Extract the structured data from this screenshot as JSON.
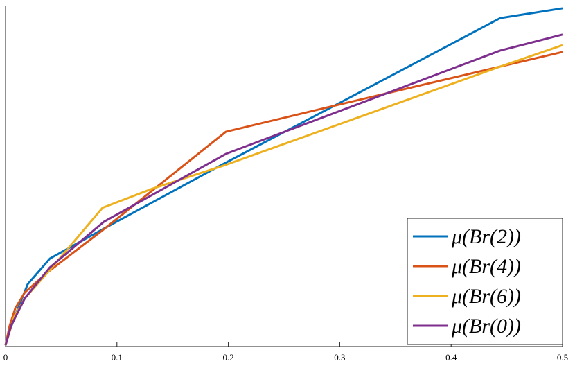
{
  "chart_data": {
    "type": "line",
    "xlim": [
      0,
      0.5
    ],
    "xticks": [
      0,
      0.1,
      0.2,
      0.3,
      0.4,
      0.5
    ],
    "ylim": [
      0,
      1
    ],
    "legend": "lower right",
    "series": [
      {
        "name": "μ(Br(2))",
        "color": "#0072bd",
        "x": [
          0,
          0.0037,
          0.0087,
          0.0199,
          0.0398,
          0.0883,
          0.194,
          0.2985,
          0.444,
          0.5
        ],
        "values": [
          0.004,
          0.045,
          0.091,
          0.183,
          0.258,
          0.346,
          0.533,
          0.712,
          0.963,
          0.992
        ]
      },
      {
        "name": "μ(Br(4))",
        "color": "#d95319",
        "x": [
          0,
          0.0037,
          0.0087,
          0.0174,
          0.0386,
          0.0871,
          0.1978,
          0.296,
          0.444,
          0.5
        ],
        "values": [
          0.004,
          0.061,
          0.112,
          0.159,
          0.22,
          0.341,
          0.63,
          0.707,
          0.821,
          0.864
        ]
      },
      {
        "name": "μ(Br(6))",
        "color": "#edb120",
        "x": [
          0,
          0.0075,
          0.0174,
          0.0386,
          0.0871,
          0.1318,
          0.1978,
          0.444,
          0.5
        ],
        "values": [
          0.004,
          0.085,
          0.142,
          0.22,
          0.407,
          0.463,
          0.533,
          0.821,
          0.884
        ]
      },
      {
        "name": "μ(Br(0))",
        "color": "#7e2f8e",
        "x": [
          0,
          0.005,
          0.0174,
          0.0398,
          0.0883,
          0.1978,
          0.444,
          0.5
        ],
        "values": [
          0.004,
          0.061,
          0.142,
          0.232,
          0.366,
          0.565,
          0.868,
          0.915
        ]
      }
    ]
  }
}
